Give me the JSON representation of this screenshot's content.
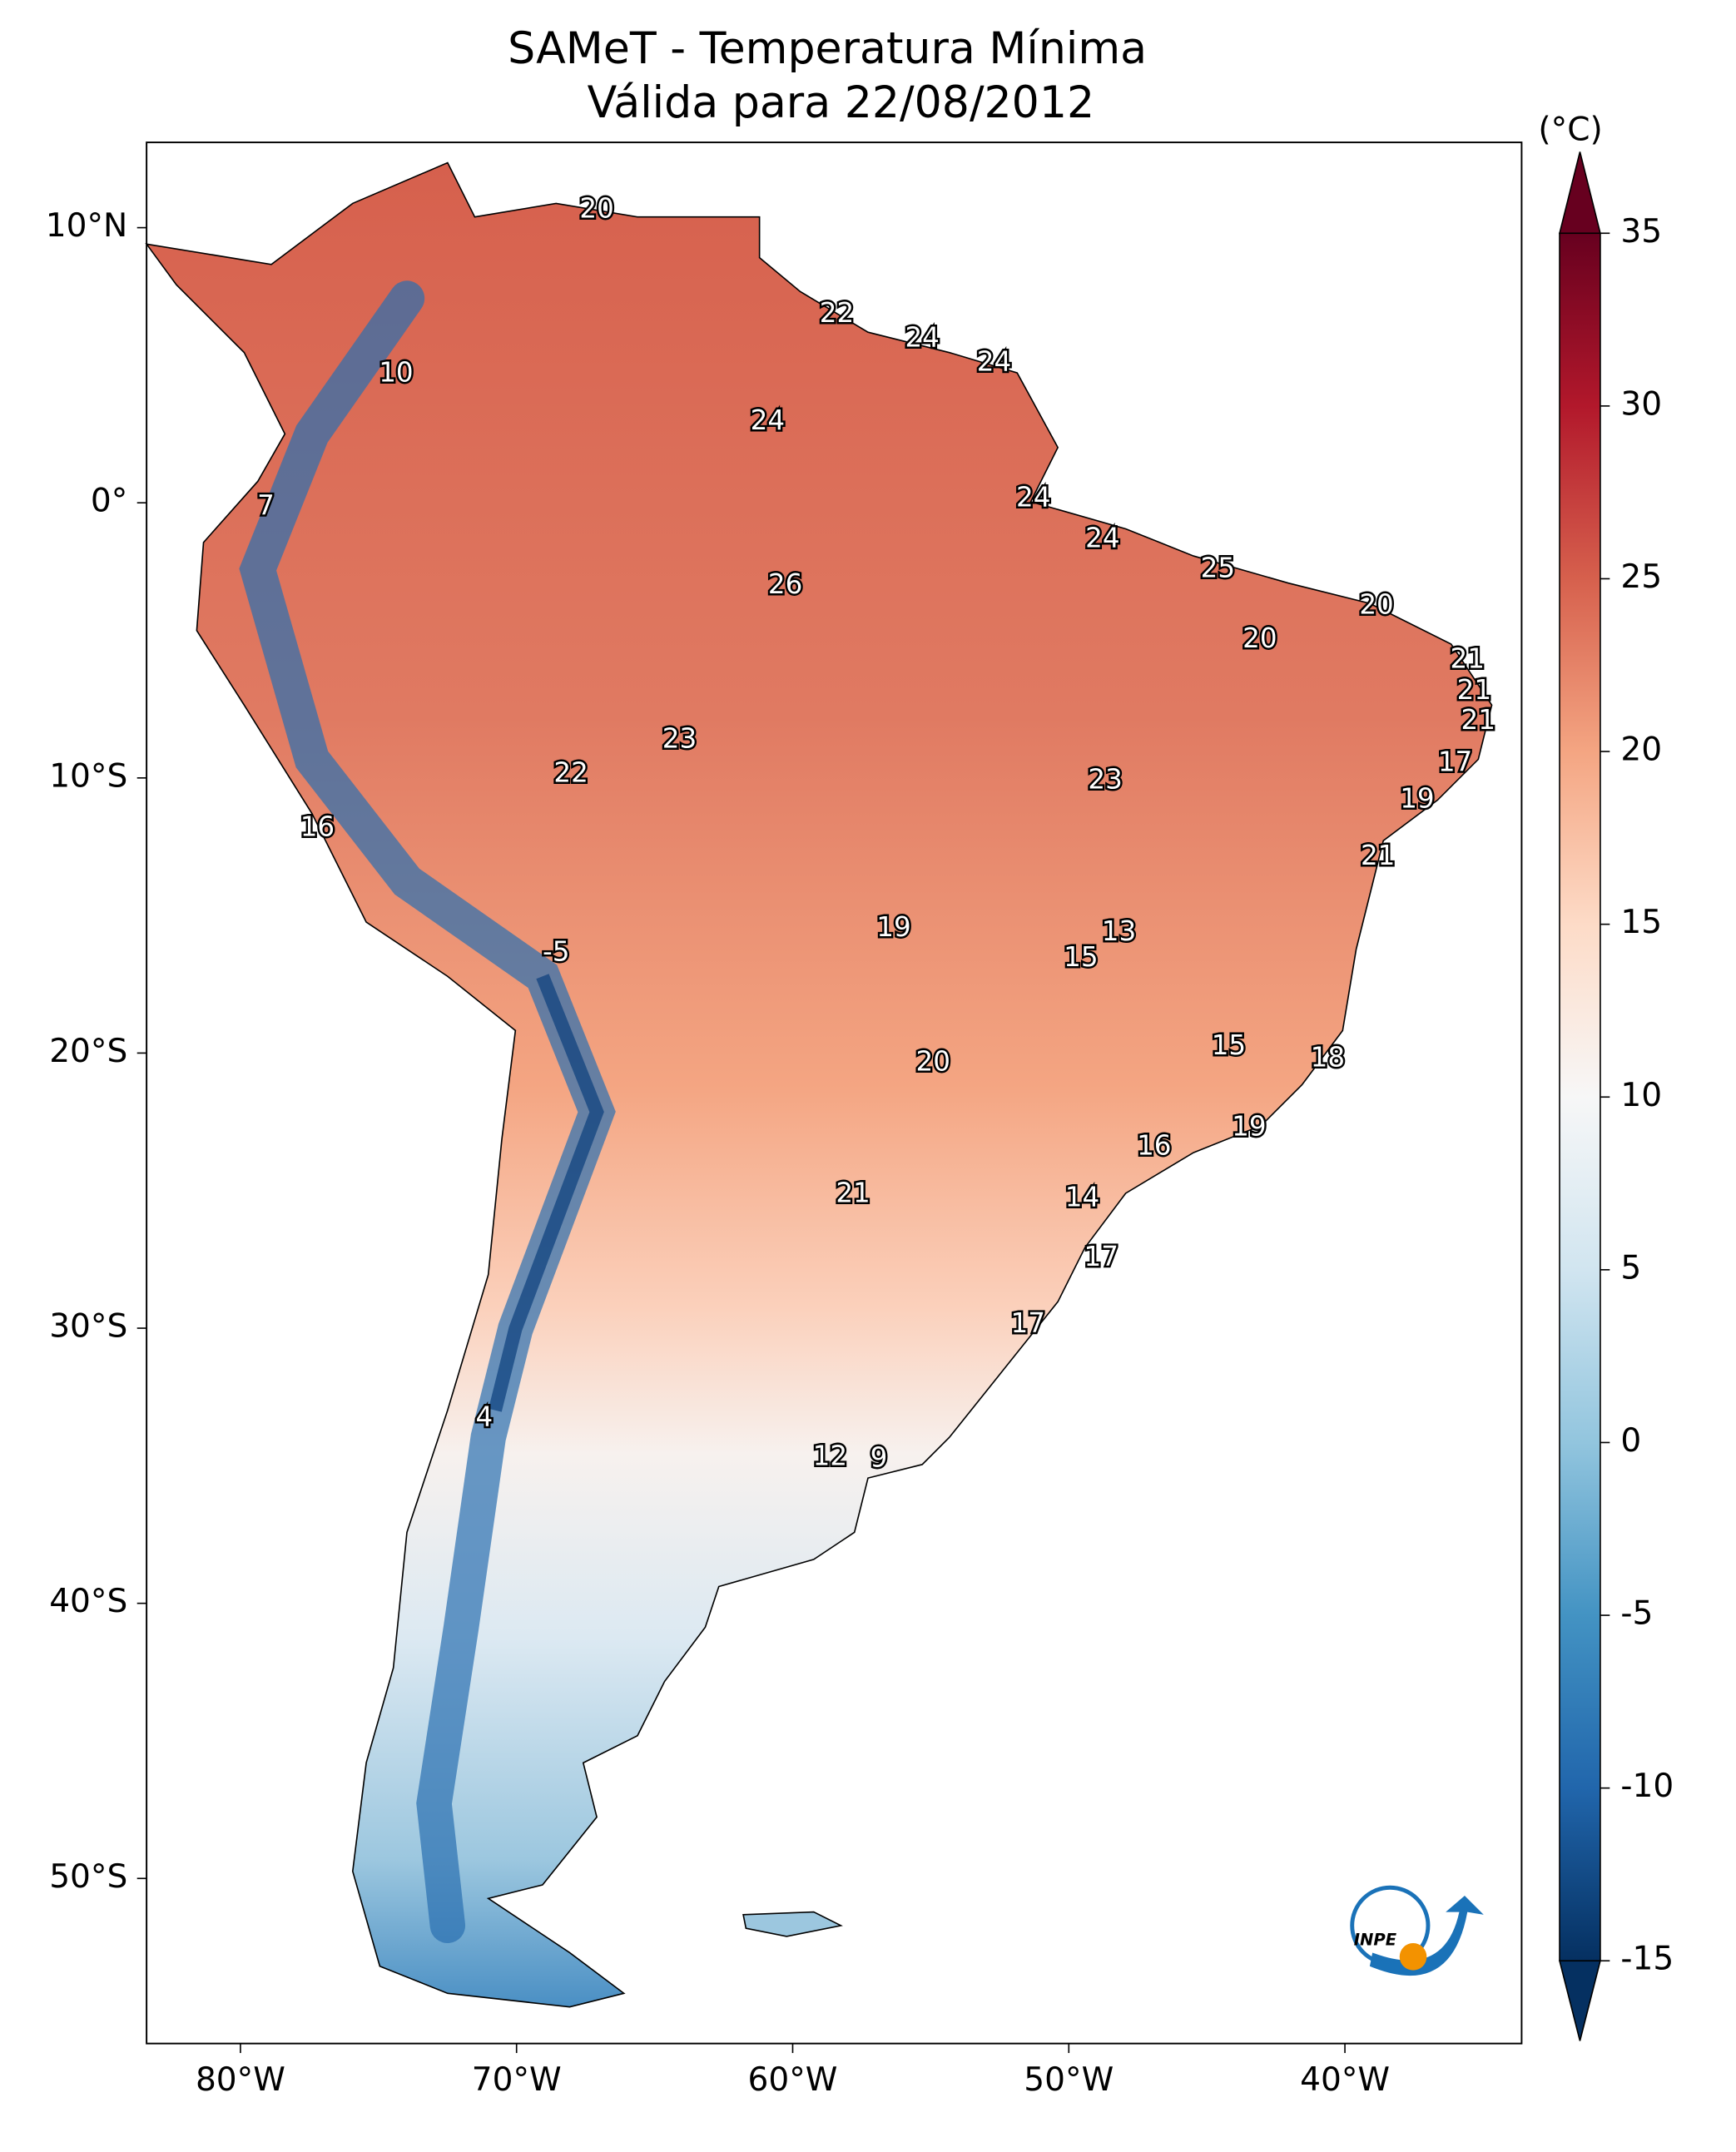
{
  "title": "SAMeT - Temperatura Mínima",
  "subtitle": "Válida para 22/08/2012",
  "map": {
    "xlim": [
      -83.4,
      -33.6
    ],
    "ylim": [
      -56,
      13.1
    ],
    "xticks": [
      {
        "value": -80,
        "label": "80°W"
      },
      {
        "value": -70,
        "label": "70°W"
      },
      {
        "value": -60,
        "label": "60°W"
      },
      {
        "value": -50,
        "label": "50°W"
      },
      {
        "value": -40,
        "label": "40°W"
      }
    ],
    "yticks": [
      {
        "value": 10,
        "label": "10°N"
      },
      {
        "value": 0,
        "label": "0°"
      },
      {
        "value": -10,
        "label": "10°S"
      },
      {
        "value": -20,
        "label": "20°S"
      },
      {
        "value": -30,
        "label": "30°S"
      },
      {
        "value": -40,
        "label": "40°S"
      },
      {
        "value": -50,
        "label": "50°S"
      }
    ]
  },
  "colorbar": {
    "unit": "(°C)",
    "lim": [
      -15,
      35
    ],
    "ticks": [
      -15,
      -10,
      -5,
      0,
      5,
      10,
      15,
      20,
      25,
      30,
      35
    ]
  },
  "stations": [
    20,
    22,
    24,
    24,
    10,
    24,
    7,
    24,
    24,
    25,
    26,
    20,
    20,
    21,
    21,
    21,
    23,
    22,
    23,
    17,
    19,
    16,
    21,
    13,
    19,
    15,
    -5,
    15,
    18,
    20,
    19,
    16,
    21,
    14,
    17,
    17,
    4,
    12,
    9
  ],
  "logo": "INPE"
}
